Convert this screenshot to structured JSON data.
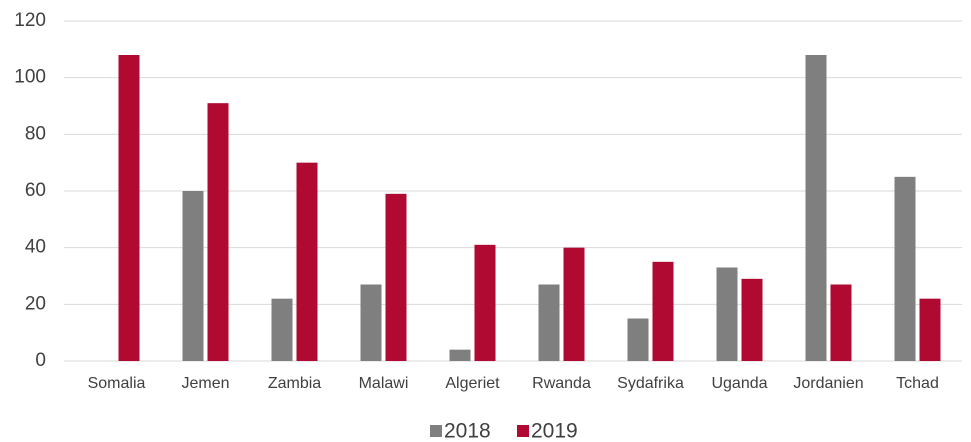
{
  "chart_data": {
    "type": "bar",
    "categories": [
      "Somalia",
      "Jemen",
      "Zambia",
      "Malawi",
      "Algeriet",
      "Rwanda",
      "Sydafrika",
      "Uganda",
      "Jordanien",
      "Tchad"
    ],
    "series": [
      {
        "name": "2018",
        "color": "#7f7f7f",
        "values": [
          0,
          60,
          22,
          27,
          4,
          27,
          15,
          33,
          108,
          65
        ]
      },
      {
        "name": "2019",
        "color": "#b00a32",
        "values": [
          108,
          91,
          70,
          59,
          41,
          40,
          35,
          29,
          27,
          22
        ]
      }
    ],
    "ylim": [
      0,
      120
    ],
    "yticks": [
      0,
      20,
      40,
      60,
      80,
      100,
      120
    ],
    "grid": true,
    "legend": "bottom"
  }
}
